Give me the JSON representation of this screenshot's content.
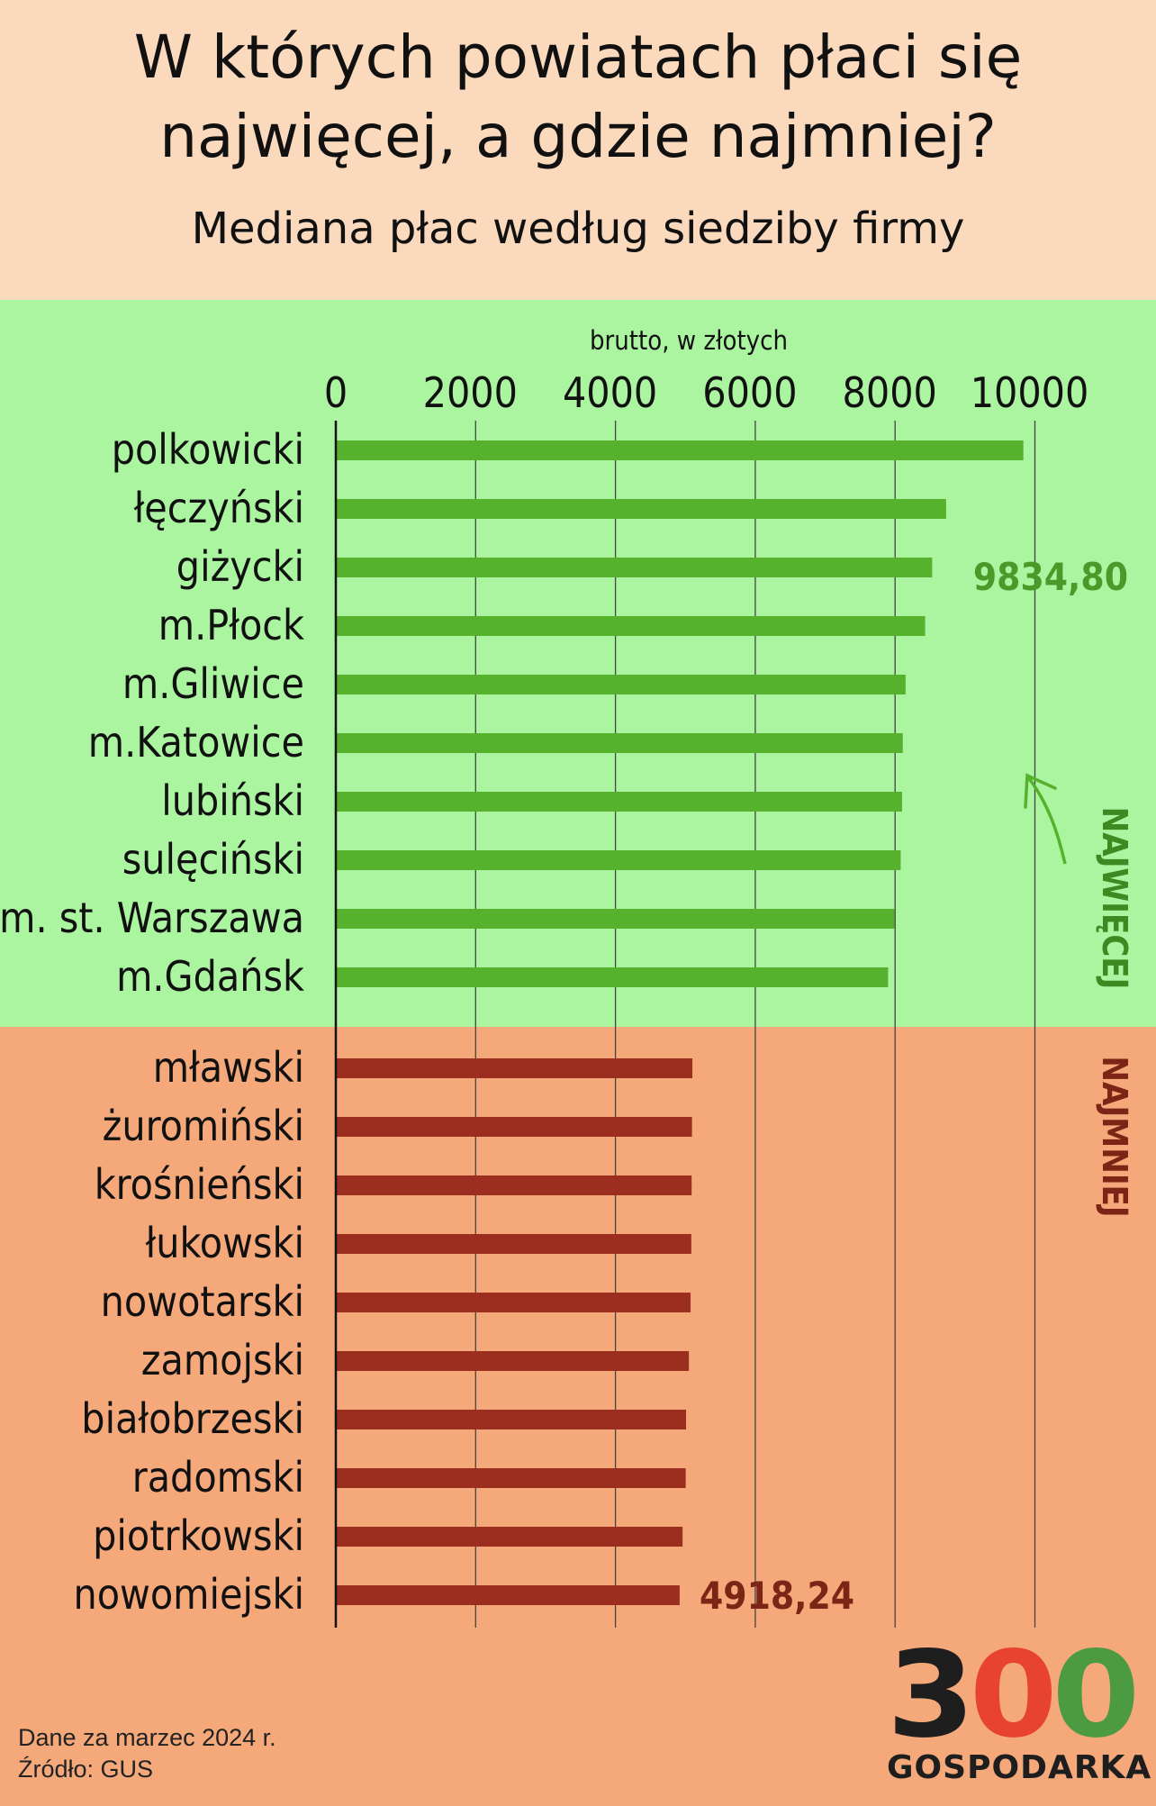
{
  "header": {
    "title_line1": "W których powiatach płaci się",
    "title_line2": "najwięcej, a gdzie najmniej?",
    "subtitle": "Mediana płac według siedziby firmy"
  },
  "chart_data": {
    "type": "bar",
    "orientation": "horizontal",
    "xlabel": "brutto, w złotych",
    "xlim": [
      0,
      11000
    ],
    "xticks": [
      0,
      2000,
      4000,
      6000,
      8000,
      10000
    ],
    "grid": true,
    "series": [
      {
        "name": "NAJWIĘCEJ",
        "color": "#56b12d",
        "categories": [
          "polkowicki",
          "łęczyński",
          "giżycki",
          "m.Płock",
          "m.Gliwice",
          "m.Katowice",
          "lubiński",
          "sulęciński",
          "m. st. Warszawa",
          "m.Gdańsk"
        ],
        "values": [
          9834.8,
          8730,
          8530,
          8430,
          8150,
          8110,
          8100,
          8080,
          7990,
          7900
        ]
      },
      {
        "name": "NAJMNIEJ",
        "color": "#9b2e1f",
        "categories": [
          "mławski",
          "żuromiński",
          "krośnieński",
          "łukowski",
          "nowotarski",
          "zamojski",
          "białobrzeski",
          "radomski",
          "piotrkowski",
          "nowomiejski"
        ],
        "values": [
          5100,
          5095,
          5090,
          5085,
          5075,
          5050,
          5010,
          5005,
          4960,
          4918.24
        ]
      }
    ],
    "annotations": [
      {
        "text": "9834,80",
        "series": 0,
        "index": 0
      },
      {
        "text": "4918,24",
        "series": 1,
        "index": 9
      }
    ]
  },
  "footer": {
    "note": "Dane za marzec 2024 r.",
    "source": "Źródło: GUS"
  },
  "logo": {
    "number": "300",
    "text": "GOSPODARKA",
    "colors": [
      "#1e1e1e",
      "#e8432f",
      "#4c9a42"
    ]
  }
}
